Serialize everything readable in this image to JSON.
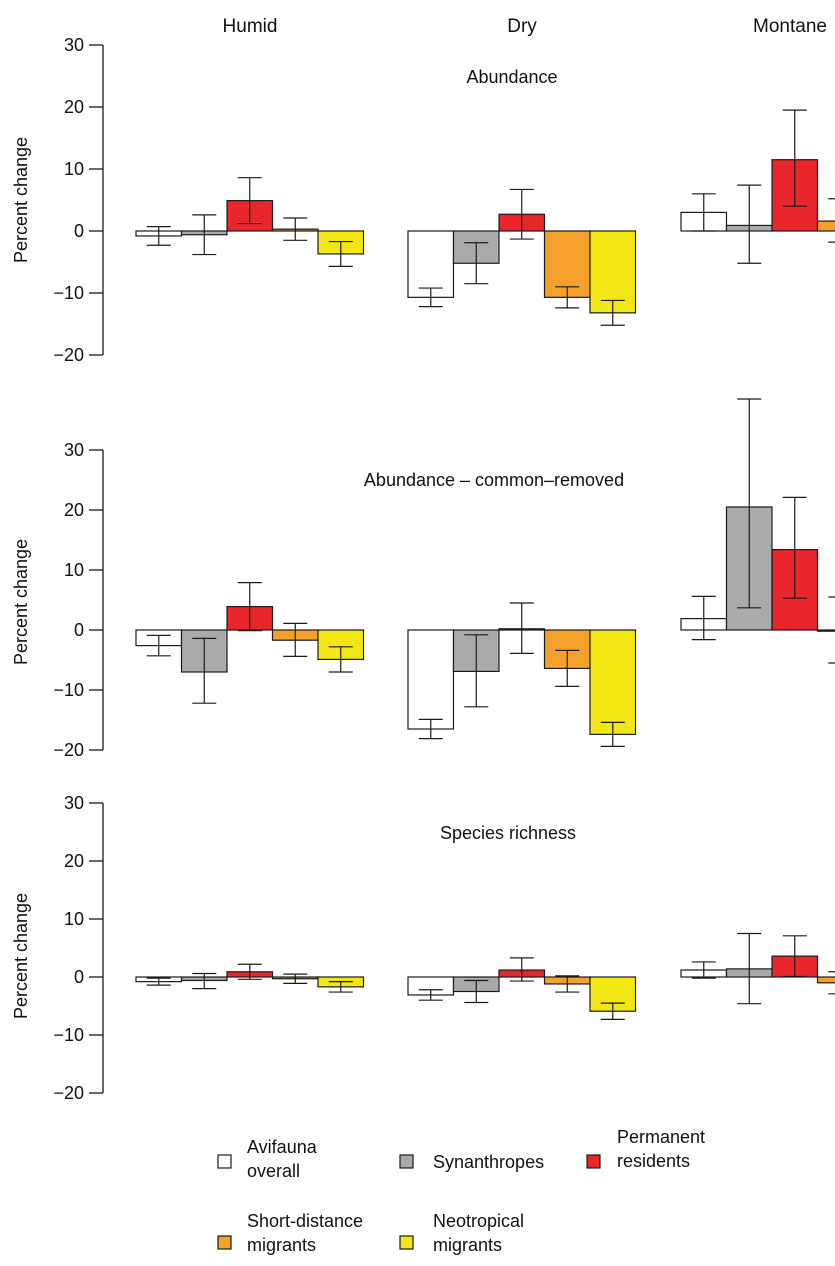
{
  "columns": [
    "Humid",
    "Dry",
    "Montane"
  ],
  "colors": {
    "avifauna": "#ffffff",
    "synanthropes": "#aaaaad",
    "permanent": "#e8262c",
    "short": "#f4a12b",
    "neotropical": "#f2e714",
    "stroke": "#1a1a1a"
  },
  "legend": [
    {
      "key": "avifauna",
      "line1": "Avifauna",
      "line2": "overall"
    },
    {
      "key": "synanthropes",
      "line1": "Synanthropes",
      "line2": ""
    },
    {
      "key": "permanent",
      "line1": "Permanent",
      "line2": "residents"
    },
    {
      "key": "short",
      "line1": "Short-distance",
      "line2": "migrants"
    },
    {
      "key": "neotropical",
      "line1": "Neotropical",
      "line2": "migrants"
    }
  ],
  "chart_data": [
    {
      "type": "bar",
      "title": "Abundance",
      "ylabel": "Percent change",
      "ylim": [
        -20,
        30
      ],
      "yticks": [
        -20,
        -10,
        0,
        10,
        20,
        30
      ],
      "categories": [
        "Humid",
        "Dry",
        "Montane"
      ],
      "series": [
        {
          "key": "avifauna",
          "name": "Avifauna overall",
          "values": [
            -0.8,
            -10.7,
            3.0
          ],
          "err_low": [
            -2.3,
            -12.2,
            0.0
          ],
          "err_high": [
            0.7,
            -9.2,
            6.0
          ]
        },
        {
          "key": "synanthropes",
          "name": "Synanthropes",
          "values": [
            -0.6,
            -5.2,
            0.9
          ],
          "err_low": [
            -3.8,
            -8.5,
            -5.2
          ],
          "err_high": [
            2.6,
            -1.9,
            7.4
          ]
        },
        {
          "key": "permanent",
          "name": "Permanent residents",
          "values": [
            4.9,
            2.7,
            11.5
          ],
          "err_low": [
            1.2,
            -1.3,
            4.0
          ],
          "err_high": [
            8.6,
            6.7,
            19.5
          ]
        },
        {
          "key": "short",
          "name": "Short-distance migrants",
          "values": [
            0.3,
            -10.7,
            1.6
          ],
          "err_low": [
            -1.5,
            -12.4,
            -1.8
          ],
          "err_high": [
            2.1,
            -9.0,
            5.2
          ]
        },
        {
          "key": "neotropical",
          "name": "Neotropical migrants",
          "values": [
            -3.7,
            -13.2,
            null
          ],
          "err_low": [
            -5.7,
            -15.2,
            null
          ],
          "err_high": [
            -1.7,
            -11.2,
            null
          ]
        }
      ]
    },
    {
      "type": "bar",
      "title": "Abundance – common–removed",
      "ylabel": "Percent change",
      "ylim": [
        -20,
        30
      ],
      "yticks": [
        -20,
        -10,
        0,
        10,
        20,
        30
      ],
      "categories": [
        "Humid",
        "Dry",
        "Montane"
      ],
      "series": [
        {
          "key": "avifauna",
          "name": "Avifauna overall",
          "values": [
            -2.6,
            -16.5,
            1.9
          ],
          "err_low": [
            -4.3,
            -18.1,
            -1.6
          ],
          "err_high": [
            -0.9,
            -14.9,
            5.6
          ]
        },
        {
          "key": "synanthropes",
          "name": "Synanthropes",
          "values": [
            -7.0,
            -6.9,
            20.5
          ],
          "err_low": [
            -12.2,
            -12.8,
            3.7
          ],
          "err_high": [
            -1.4,
            -0.8,
            38.5
          ]
        },
        {
          "key": "permanent",
          "name": "Permanent residents",
          "values": [
            3.9,
            0.2,
            13.4
          ],
          "err_low": [
            -0.1,
            -3.9,
            5.3
          ],
          "err_high": [
            7.9,
            4.5,
            22.1
          ]
        },
        {
          "key": "short",
          "name": "Short-distance migrants",
          "values": [
            -1.7,
            -6.4,
            -0.1
          ],
          "err_low": [
            -4.4,
            -9.4,
            -5.5
          ],
          "err_high": [
            1.1,
            -3.4,
            5.5
          ]
        },
        {
          "key": "neotropical",
          "name": "Neotropical migrants",
          "values": [
            -4.9,
            -17.4,
            null
          ],
          "err_low": [
            -7.0,
            -19.4,
            null
          ],
          "err_high": [
            -2.8,
            -15.4,
            null
          ]
        }
      ]
    },
    {
      "type": "bar",
      "title": "Species richness",
      "ylabel": "Percent change",
      "ylim": [
        -20,
        30
      ],
      "yticks": [
        -20,
        -10,
        0,
        10,
        20,
        30
      ],
      "categories": [
        "Humid",
        "Dry",
        "Montane"
      ],
      "series": [
        {
          "key": "avifauna",
          "name": "Avifauna overall",
          "values": [
            -0.8,
            -3.1,
            1.2
          ],
          "err_low": [
            -1.4,
            -4.0,
            -0.2
          ],
          "err_high": [
            -0.2,
            -2.2,
            2.6
          ]
        },
        {
          "key": "synanthropes",
          "name": "Synanthropes",
          "values": [
            -0.6,
            -2.5,
            1.4
          ],
          "err_low": [
            -2.0,
            -4.4,
            -4.6
          ],
          "err_high": [
            0.6,
            -0.6,
            7.5
          ]
        },
        {
          "key": "permanent",
          "name": "Permanent residents",
          "values": [
            0.9,
            1.2,
            3.6
          ],
          "err_low": [
            -0.4,
            -0.7,
            0.1
          ],
          "err_high": [
            2.2,
            3.3,
            7.1
          ]
        },
        {
          "key": "short",
          "name": "Short-distance migrants",
          "values": [
            -0.3,
            -1.2,
            -1.0
          ],
          "err_low": [
            -1.1,
            -2.6,
            -2.9
          ],
          "err_high": [
            0.5,
            0.2,
            0.9
          ]
        },
        {
          "key": "neotropical",
          "name": "Neotropical migrants",
          "values": [
            -1.7,
            -5.9,
            null
          ],
          "err_low": [
            -2.6,
            -7.3,
            null
          ],
          "err_high": [
            -0.8,
            -4.5,
            null
          ]
        }
      ]
    }
  ]
}
